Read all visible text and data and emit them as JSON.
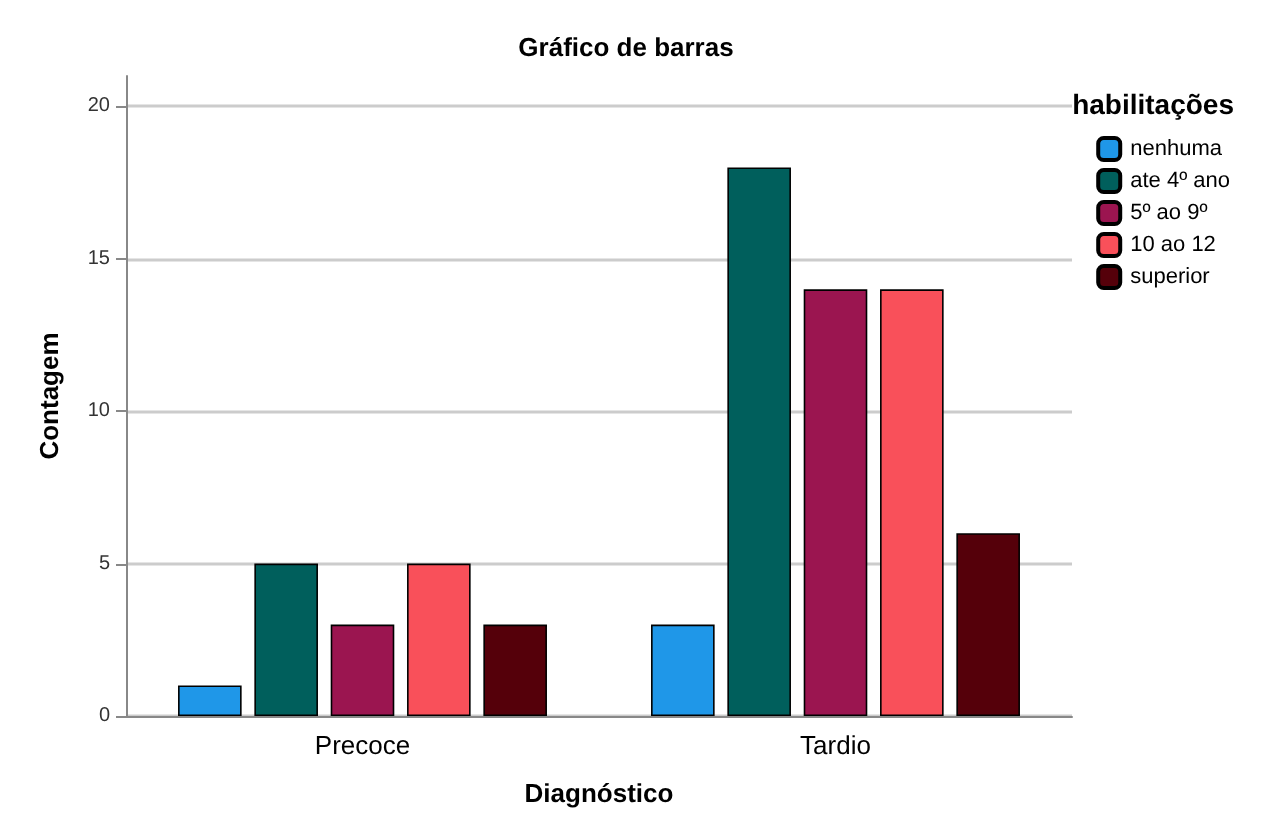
{
  "chart_data": {
    "type": "bar",
    "title": "Gráfico de barras",
    "xlabel": "Diagnóstico",
    "ylabel": "Contagem",
    "legend_title": "habilitações",
    "categories": [
      "Precoce",
      "Tardio"
    ],
    "series": [
      {
        "name": "nenhuma",
        "color": "#1f97e8",
        "values": [
          1,
          3
        ]
      },
      {
        "name": "ate 4º ano",
        "color": "#005f5c",
        "values": [
          5,
          18
        ]
      },
      {
        "name": "5º ao 9º",
        "color": "#9b1550",
        "values": [
          3,
          14
        ]
      },
      {
        "name": "10 ao 12",
        "color": "#f9505a",
        "values": [
          5,
          14
        ]
      },
      {
        "name": "superior",
        "color": "#55000a",
        "values": [
          3,
          6
        ]
      }
    ],
    "ylim": [
      0,
      21
    ],
    "yticks": [
      0,
      5,
      10,
      15,
      20
    ],
    "grid": "y",
    "legend": "top right"
  }
}
